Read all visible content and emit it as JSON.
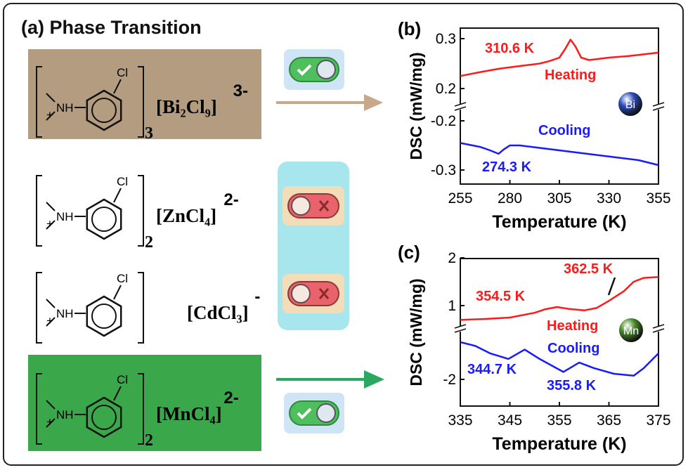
{
  "panel_a": {
    "title": "(a) Phase Transition",
    "compounds": [
      {
        "label_subscript_outer": "3",
        "anion": "[Bi₂Cl₉]",
        "charge": "3-",
        "transition": true
      },
      {
        "label_subscript_outer": "2",
        "anion": "[ZnCl₄]",
        "charge": "2-",
        "transition": false
      },
      {
        "label_subscript_outer": "",
        "anion": "[CdCl₃]",
        "charge": "-",
        "transition": false
      },
      {
        "label_subscript_outer": "2",
        "anion": "[MnCl₄]",
        "charge": "2-",
        "transition": true
      }
    ],
    "cation": {
      "nh": "NH",
      "plus": "+",
      "cl": "Cl"
    },
    "colors": {
      "bi_box": "#b49c80",
      "mn_box": "#3aa84a",
      "cyan_box": "#a8e6ee",
      "arrow_bi": "#c8a888",
      "arrow_mn": "#2aa860",
      "toggle_on": "#4fbe5c",
      "toggle_off": "#e8636b"
    }
  },
  "chart_data": [
    {
      "panel": "(b)",
      "type": "line",
      "xlabel": "Temperature (K)",
      "ylabel": "DSC (mW/mg)",
      "xlim": [
        255,
        355
      ],
      "xticks": [
        255,
        280,
        305,
        330,
        355
      ],
      "yticks_upper": [
        "0.3",
        "0.2"
      ],
      "yticks_lower": [
        "-0.2",
        "-0.3"
      ],
      "badge": "Bi",
      "series": [
        {
          "name": "Heating",
          "color": "#ff1a1a",
          "x": [
            255,
            265,
            275,
            285,
            295,
            300,
            305,
            308,
            310.6,
            313,
            316,
            320,
            330,
            340,
            355
          ],
          "y": [
            0.225,
            0.233,
            0.24,
            0.245,
            0.25,
            0.255,
            0.262,
            0.28,
            0.298,
            0.285,
            0.262,
            0.257,
            0.262,
            0.265,
            0.272
          ]
        },
        {
          "name": "Cooling",
          "color": "#1a1aff",
          "x": [
            255,
            265,
            270,
            274.3,
            277,
            280,
            285,
            295,
            305,
            315,
            325,
            335,
            345,
            355
          ],
          "y": [
            -0.245,
            -0.253,
            -0.26,
            -0.267,
            -0.258,
            -0.25,
            -0.25,
            -0.255,
            -0.26,
            -0.265,
            -0.27,
            -0.275,
            -0.28,
            -0.29
          ]
        }
      ],
      "annotations": [
        "310.6 K",
        "274.3 K",
        "Heating",
        "Cooling"
      ]
    },
    {
      "panel": "(c)",
      "type": "line",
      "xlabel": "Temperature (K)",
      "ylabel": "DSC (mW/mg)",
      "xlim": [
        335,
        375
      ],
      "xticks": [
        335,
        345,
        355,
        365,
        375
      ],
      "yticks_upper": [
        "2",
        "1"
      ],
      "yticks_lower": [
        "-2"
      ],
      "badge": "Mn",
      "series": [
        {
          "name": "Heating",
          "color": "#ff1a1a",
          "x": [
            335,
            340,
            345,
            350,
            352,
            354.5,
            357,
            360,
            362.5,
            365,
            368,
            370,
            372,
            375
          ],
          "y": [
            0.7,
            0.72,
            0.75,
            0.85,
            0.92,
            0.97,
            0.93,
            0.9,
            0.95,
            1.1,
            1.3,
            1.5,
            1.58,
            1.6
          ]
        },
        {
          "name": "Cooling",
          "color": "#1a1aff",
          "x": [
            335,
            338,
            341,
            344.7,
            348,
            351,
            355.8,
            359,
            362,
            366,
            370,
            372,
            375
          ],
          "y": [
            -1.0,
            -1.1,
            -1.3,
            -1.45,
            -1.2,
            -1.45,
            -1.8,
            -1.55,
            -1.7,
            -1.85,
            -1.9,
            -1.7,
            -1.3
          ]
        }
      ],
      "annotations": [
        "354.5 K",
        "362.5 K",
        "344.7 K",
        "355.8 K",
        "Heating",
        "Cooling"
      ]
    }
  ]
}
